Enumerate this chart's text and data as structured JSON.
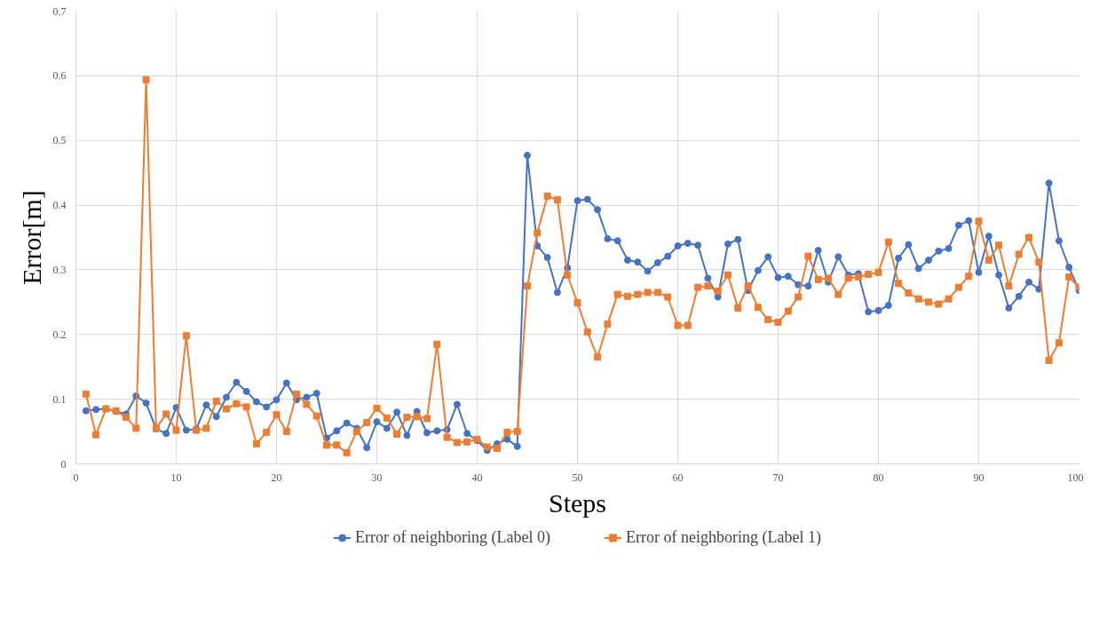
{
  "chart_data": {
    "type": "line",
    "xlabel": "Steps",
    "ylabel": "Error[m]",
    "x": [
      1,
      2,
      3,
      4,
      5,
      6,
      7,
      8,
      9,
      10,
      11,
      12,
      13,
      14,
      15,
      16,
      17,
      18,
      19,
      20,
      21,
      22,
      23,
      24,
      25,
      26,
      27,
      28,
      29,
      30,
      31,
      32,
      33,
      34,
      35,
      36,
      37,
      38,
      39,
      40,
      41,
      42,
      43,
      44,
      45,
      46,
      47,
      48,
      49,
      50,
      51,
      52,
      53,
      54,
      55,
      56,
      57,
      58,
      59,
      60,
      61,
      62,
      63,
      64,
      65,
      66,
      67,
      68,
      69,
      70,
      71,
      72,
      73,
      74,
      75,
      76,
      77,
      78,
      79,
      80,
      81,
      82,
      83,
      84,
      85,
      86,
      87,
      88,
      89,
      90,
      91,
      92,
      93,
      94,
      95,
      96,
      97,
      98,
      99,
      100
    ],
    "series": [
      {
        "name": "Error of neighboring (Label 0)",
        "color": "#4472c4",
        "marker": "circle",
        "values": [
          0.082,
          0.084,
          0.085,
          0.081,
          0.077,
          0.105,
          0.094,
          0.054,
          0.047,
          0.087,
          0.052,
          0.054,
          0.091,
          0.073,
          0.103,
          0.126,
          0.112,
          0.096,
          0.088,
          0.099,
          0.125,
          0.099,
          0.103,
          0.109,
          0.04,
          0.051,
          0.063,
          0.055,
          0.025,
          0.065,
          0.055,
          0.08,
          0.044,
          0.081,
          0.048,
          0.051,
          0.053,
          0.092,
          0.047,
          0.036,
          0.021,
          0.031,
          0.038,
          0.027,
          0.477,
          0.337,
          0.319,
          0.265,
          0.303,
          0.407,
          0.409,
          0.393,
          0.348,
          0.345,
          0.315,
          0.312,
          0.298,
          0.311,
          0.321,
          0.337,
          0.341,
          0.338,
          0.287,
          0.258,
          0.34,
          0.347,
          0.268,
          0.299,
          0.32,
          0.288,
          0.29,
          0.277,
          0.275,
          0.33,
          0.281,
          0.32,
          0.292,
          0.294,
          0.235,
          0.237,
          0.245,
          0.318,
          0.339,
          0.302,
          0.315,
          0.329,
          0.333,
          0.369,
          0.376,
          0.296,
          0.352,
          0.292,
          0.241,
          0.259,
          0.281,
          0.27,
          0.434,
          0.345,
          0.304,
          0.268
        ]
      },
      {
        "name": "Error of neighboring (Label 1)",
        "color": "#ed7d31",
        "marker": "square",
        "values": [
          0.108,
          0.045,
          0.085,
          0.082,
          0.072,
          0.055,
          0.594,
          0.055,
          0.077,
          0.052,
          0.198,
          0.052,
          0.055,
          0.097,
          0.085,
          0.093,
          0.088,
          0.031,
          0.049,
          0.076,
          0.05,
          0.108,
          0.092,
          0.074,
          0.029,
          0.029,
          0.017,
          0.05,
          0.064,
          0.086,
          0.071,
          0.046,
          0.072,
          0.073,
          0.07,
          0.185,
          0.041,
          0.033,
          0.034,
          0.038,
          0.026,
          0.024,
          0.049,
          0.05,
          0.275,
          0.357,
          0.414,
          0.408,
          0.292,
          0.249,
          0.204,
          0.165,
          0.216,
          0.262,
          0.259,
          0.262,
          0.265,
          0.265,
          0.258,
          0.214,
          0.214,
          0.273,
          0.275,
          0.267,
          0.292,
          0.241,
          0.275,
          0.242,
          0.223,
          0.219,
          0.236,
          0.258,
          0.321,
          0.285,
          0.287,
          0.262,
          0.287,
          0.289,
          0.293,
          0.296,
          0.343,
          0.279,
          0.264,
          0.255,
          0.25,
          0.247,
          0.255,
          0.273,
          0.29,
          0.375,
          0.315,
          0.338,
          0.275,
          0.324,
          0.35,
          0.312,
          0.16,
          0.187,
          0.289,
          0.273
        ]
      }
    ],
    "xlim": [
      0,
      100
    ],
    "xticks": [
      0,
      10,
      20,
      30,
      40,
      50,
      60,
      70,
      80,
      90,
      100
    ],
    "ylim": [
      0,
      0.7
    ],
    "yticks": [
      0,
      0.1,
      0.2,
      0.3,
      0.4,
      0.5,
      0.6,
      0.7
    ],
    "grid": true,
    "legend": "bottom",
    "line_style": "solid"
  }
}
